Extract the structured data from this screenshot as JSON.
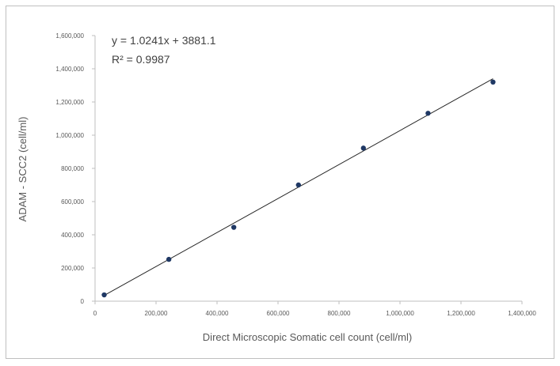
{
  "chart_data": {
    "type": "scatter",
    "xlabel": "Direct Microscopic Somatic cell count (cell/ml)",
    "ylabel": "ADAM - SCC2 (cell/ml)",
    "xlim": [
      0,
      1400000
    ],
    "ylim": [
      0,
      1600000
    ],
    "x_ticks": [
      0,
      200000,
      400000,
      600000,
      800000,
      1000000,
      1200000,
      1400000
    ],
    "x_tick_labels": [
      "0",
      "200,000",
      "400,000",
      "600,000",
      "800,000",
      "1,000,000",
      "1,200,000",
      "1,400,000"
    ],
    "y_ticks": [
      0,
      200000,
      400000,
      600000,
      800000,
      1000000,
      1200000,
      1400000,
      1600000
    ],
    "y_tick_labels": [
      "0",
      "200,000",
      "400,000",
      "600,000",
      "800,000",
      "1,000,000",
      "1,200,000",
      "1,400,000",
      "1,600,000"
    ],
    "series": [
      {
        "x": [
          30000,
          242000,
          455000,
          667000,
          880000,
          1092000,
          1305000
        ],
        "y": [
          38000,
          252000,
          445000,
          700000,
          922000,
          1132000,
          1320000
        ]
      }
    ],
    "trendline": {
      "slope": 1.0241,
      "intercept": 3881.1,
      "x_range": [
        30000,
        1305000
      ]
    },
    "equation": "y = 1.0241x + 3881.1",
    "r_squared": "R² = 0.9987",
    "grid": false,
    "colors": {
      "marker": "#1f3864",
      "trendline": "#262626",
      "axis": "#bfbfbf"
    }
  }
}
